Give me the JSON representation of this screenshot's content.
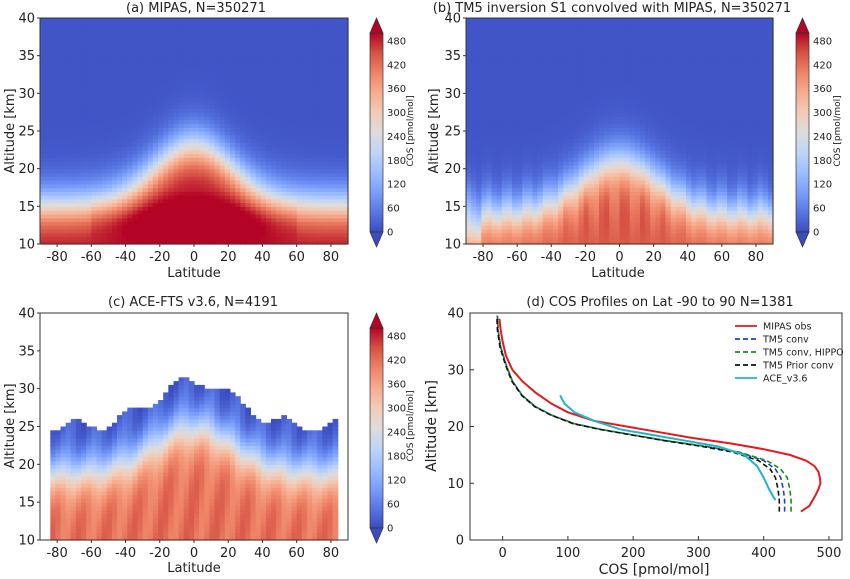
{
  "colormap": [
    "#3b4cc0",
    "#5977e3",
    "#7b9ff9",
    "#9ebeff",
    "#c0d4f5",
    "#dddcdc",
    "#f2cbb7",
    "#f7ac8e",
    "#ee8468",
    "#d65244",
    "#b40426"
  ],
  "chart_data": [
    {
      "id": "a",
      "type": "heatmap",
      "title": "(a) MIPAS, N=350271",
      "xlabel": "Latitude",
      "ylabel": "Altitude [km]",
      "xlim": [
        -90,
        90
      ],
      "ylim": [
        10,
        40
      ],
      "xticks": [
        -80,
        -60,
        -40,
        -20,
        0,
        20,
        40,
        60,
        80
      ],
      "yticks": [
        10,
        15,
        20,
        25,
        30,
        35,
        40
      ],
      "colorbar": {
        "label": "COS [pmol/mol]",
        "range": [
          0,
          500
        ],
        "ticks": [
          0,
          60,
          120,
          180,
          240,
          300,
          360,
          420,
          480
        ]
      },
      "tropopause_km": {
        "pole": 15,
        "equator": 23
      },
      "lowest_layer_pmol_mol": 480
    },
    {
      "id": "b",
      "type": "heatmap",
      "title": "(b) TM5 inversion S1 convolved with MIPAS, N=350271",
      "xlabel": "Latitude",
      "ylabel": "Altitude [km]",
      "xlim": [
        -90,
        90
      ],
      "ylim": [
        10,
        40
      ],
      "xticks": [
        -80,
        -60,
        -40,
        -20,
        0,
        20,
        40,
        60,
        80
      ],
      "yticks": [
        10,
        15,
        20,
        25,
        30,
        35,
        40
      ],
      "colorbar": {
        "label": "COS [pmol/mol]",
        "range": [
          0,
          500
        ],
        "ticks": [
          0,
          60,
          120,
          180,
          240,
          300,
          360,
          420,
          480
        ]
      },
      "tropopause_km": {
        "pole": 14,
        "equator": 21
      },
      "lowest_layer_pmol_mol": 420
    },
    {
      "id": "c",
      "type": "heatmap",
      "title": "(c) ACE-FTS v3.6, N=4191",
      "xlabel": "Latitude",
      "ylabel": "Altitude [km]",
      "xlim": [
        -90,
        90
      ],
      "ylim": [
        10,
        40
      ],
      "xticks": [
        -80,
        -60,
        -40,
        -20,
        0,
        20,
        40,
        60,
        80
      ],
      "yticks": [
        10,
        15,
        20,
        25,
        30,
        35,
        40
      ],
      "colorbar": {
        "label": "COS [pmol/mol]",
        "range": [
          0,
          500
        ],
        "ticks": [
          0,
          60,
          120,
          180,
          240,
          300,
          360,
          420,
          480
        ]
      },
      "data_latitude_range": [
        -85,
        85
      ],
      "data_top_km": {
        "pole": 25,
        "equator": 31
      },
      "tropopause_km": {
        "pole": 19,
        "equator": 25
      },
      "lowest_layer_pmol_mol": 400
    },
    {
      "id": "d",
      "type": "line",
      "title": "(d) COS Profiles on Lat -90 to 90 N=1381",
      "xlabel": "COS [pmol/mol]",
      "ylabel": "Altitude [km]",
      "xlim": [
        -50,
        520
      ],
      "ylim": [
        0,
        40
      ],
      "xticks": [
        0,
        100,
        200,
        300,
        400,
        500
      ],
      "yticks": [
        0,
        10,
        20,
        30,
        40
      ],
      "legend_position": "top-right",
      "series": [
        {
          "name": "MIPAS obs",
          "color": "#e41a1c",
          "dash": "",
          "points": [
            [
              457,
              5
            ],
            [
              470,
              6
            ],
            [
              475,
              7
            ],
            [
              480,
              8
            ],
            [
              484,
              9
            ],
            [
              487,
              10
            ],
            [
              486,
              11
            ],
            [
              484,
              12
            ],
            [
              478,
              13
            ],
            [
              465,
              14
            ],
            [
              440,
              15
            ],
            [
              400,
              16
            ],
            [
              350,
              17
            ],
            [
              290,
              18
            ],
            [
              240,
              19
            ],
            [
              190,
              20
            ],
            [
              140,
              21
            ],
            [
              100,
              22.5
            ],
            [
              75,
              24
            ],
            [
              50,
              26
            ],
            [
              30,
              28
            ],
            [
              15,
              30
            ],
            [
              5,
              32.5
            ],
            [
              0,
              35
            ],
            [
              -3,
              37
            ],
            [
              -5,
              39
            ]
          ]
        },
        {
          "name": "TM5 conv",
          "color": "#1f3fd6",
          "dash": "5,3",
          "points": [
            [
              432,
              5
            ],
            [
              432,
              7
            ],
            [
              430,
              9
            ],
            [
              426,
              11
            ],
            [
              418,
              12.5
            ],
            [
              400,
              14
            ],
            [
              360,
              15.5
            ],
            [
              310,
              16.5
            ],
            [
              250,
              17.5
            ],
            [
              200,
              18.5
            ],
            [
              150,
              19.5
            ],
            [
              110,
              20.5
            ],
            [
              75,
              22
            ],
            [
              50,
              23.5
            ],
            [
              30,
              25.5
            ],
            [
              15,
              28
            ],
            [
              5,
              31
            ],
            [
              -3,
              34
            ],
            [
              -7,
              37
            ],
            [
              -8,
              39.5
            ]
          ]
        },
        {
          "name": "TM5 conv, HIPPO",
          "color": "#1a8c1a",
          "dash": "5,3",
          "points": [
            [
              442,
              5
            ],
            [
              442,
              7
            ],
            [
              440,
              9
            ],
            [
              436,
              11
            ],
            [
              426,
              12.5
            ],
            [
              405,
              14
            ],
            [
              362,
              15.5
            ],
            [
              312,
              16.5
            ],
            [
              252,
              17.5
            ],
            [
              200,
              18.5
            ],
            [
              150,
              19.5
            ],
            [
              110,
              20.5
            ],
            [
              75,
              22
            ],
            [
              50,
              23.5
            ],
            [
              30,
              25.5
            ],
            [
              15,
              28
            ],
            [
              5,
              31
            ],
            [
              -3,
              34
            ],
            [
              -7,
              37
            ],
            [
              -8,
              39.5
            ]
          ]
        },
        {
          "name": "TM5 Prior conv",
          "color": "#111111",
          "dash": "5,3",
          "points": [
            [
              424,
              5
            ],
            [
              424,
              7
            ],
            [
              422,
              9
            ],
            [
              418,
              11
            ],
            [
              410,
              12.5
            ],
            [
              392,
              14
            ],
            [
              352,
              15.5
            ],
            [
              305,
              16.5
            ],
            [
              248,
              17.5
            ],
            [
              198,
              18.5
            ],
            [
              148,
              19.5
            ],
            [
              108,
              20.5
            ],
            [
              74,
              22
            ],
            [
              49,
              23.5
            ],
            [
              29,
              25.5
            ],
            [
              14,
              28
            ],
            [
              4,
              31
            ],
            [
              -4,
              34
            ],
            [
              -8,
              37
            ],
            [
              -9,
              39.5
            ]
          ]
        },
        {
          "name": "ACE_v3.6",
          "color": "#1fb5c7",
          "dash": "",
          "points": [
            [
              418,
              7
            ],
            [
              408,
              9
            ],
            [
              400,
              11
            ],
            [
              390,
              13
            ],
            [
              370,
              15
            ],
            [
              330,
              16.5
            ],
            [
              280,
              17.5
            ],
            [
              230,
              18.5
            ],
            [
              180,
              19.5
            ],
            [
              140,
              21
            ],
            [
              110,
              22.5
            ],
            [
              95,
              24
            ],
            [
              88,
              25.5
            ]
          ]
        }
      ]
    }
  ]
}
